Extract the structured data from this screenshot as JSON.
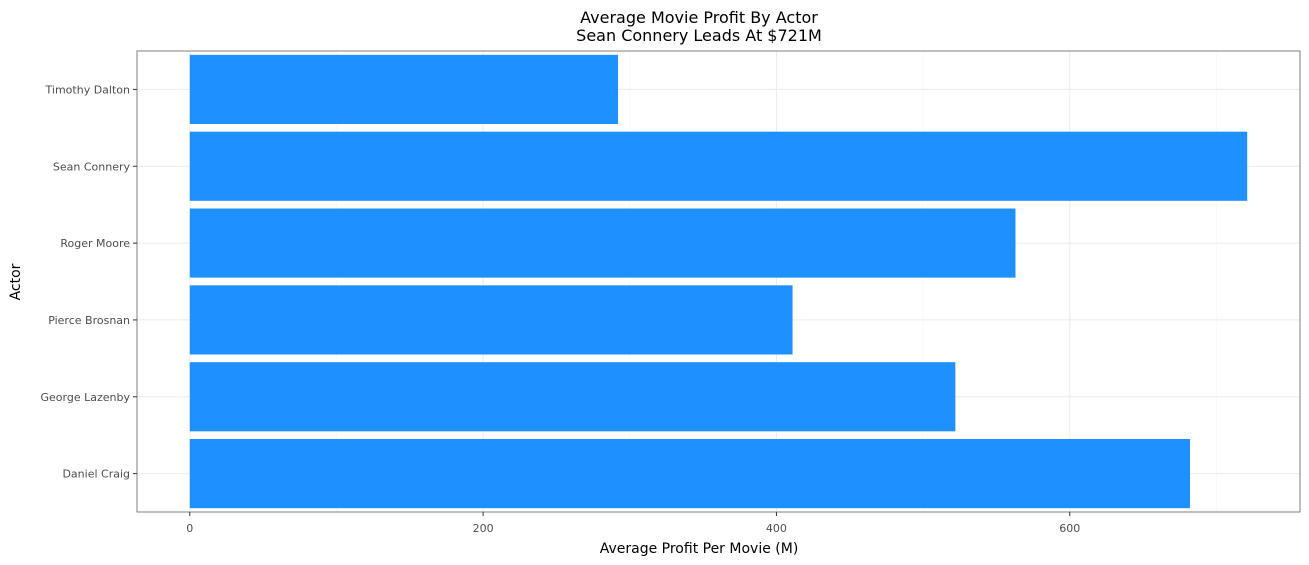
{
  "chart_data": {
    "type": "bar",
    "orientation": "horizontal",
    "title": "Average Movie Profit By Actor",
    "subtitle": "Sean Connery Leads At $721M",
    "xlabel": "Average Profit Per Movie (M)",
    "ylabel": "Actor",
    "categories": [
      "Daniel Craig",
      "George Lazenby",
      "Pierce Brosnan",
      "Roger Moore",
      "Sean Connery",
      "Timothy Dalton"
    ],
    "values": [
      682,
      522,
      411,
      563,
      721,
      292
    ],
    "xlim": [
      -36,
      757
    ],
    "xticks": [
      0,
      200,
      400,
      600
    ],
    "xtick_labels": [
      "0",
      "200",
      "400",
      "600"
    ],
    "grid": true,
    "legend": "none",
    "colors": {
      "bar": "#1e90ff",
      "panel_border": "#7f7f7f",
      "grid_major": "#ebebeb",
      "grid_minor": "#f5f5f5",
      "tick_text": "#4d4d4d"
    }
  }
}
